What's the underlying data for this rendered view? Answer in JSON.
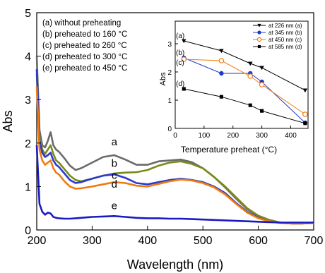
{
  "chart_data": [
    {
      "type": "line",
      "xlabel": "Wavelength (nm)",
      "ylabel": "Abs",
      "xlim": [
        200,
        700
      ],
      "ylim": [
        0,
        5
      ],
      "xticks": [
        200,
        300,
        400,
        500,
        600,
        700
      ],
      "yticks": [
        0,
        1,
        2,
        3,
        4,
        5
      ],
      "legend_position": "top-left",
      "legend": [
        "(a) without preheating",
        "(b) preheated to 160 °C",
        "(c) preheated to 260 °C",
        "(d) preheated to 300 °C",
        "(e) preheated to 450 °C"
      ],
      "x": [
        200,
        205,
        210,
        215,
        220,
        225,
        230,
        235,
        240,
        250,
        260,
        270,
        280,
        300,
        320,
        340,
        360,
        380,
        400,
        420,
        440,
        460,
        480,
        500,
        520,
        540,
        560,
        580,
        600,
        620,
        640,
        660,
        680,
        700
      ],
      "series": [
        {
          "name": "a",
          "color": "#6a6a6a",
          "values": [
            4.0,
            2.3,
            1.95,
            1.9,
            2.05,
            2.25,
            1.95,
            1.85,
            1.8,
            1.65,
            1.48,
            1.38,
            1.42,
            1.55,
            1.68,
            1.72,
            1.62,
            1.5,
            1.5,
            1.58,
            1.6,
            1.62,
            1.56,
            1.42,
            1.22,
            0.98,
            0.72,
            0.48,
            0.32,
            0.22,
            0.17,
            0.15,
            0.15,
            0.17
          ]
        },
        {
          "name": "b",
          "color": "#7a8a1a",
          "values": [
            3.6,
            2.15,
            1.85,
            1.75,
            1.85,
            1.95,
            1.75,
            1.6,
            1.55,
            1.4,
            1.25,
            1.15,
            1.12,
            1.18,
            1.25,
            1.3,
            1.32,
            1.33,
            1.38,
            1.48,
            1.55,
            1.58,
            1.52,
            1.42,
            1.22,
            1.0,
            0.75,
            0.5,
            0.33,
            0.23,
            0.17,
            0.15,
            0.15,
            0.17
          ]
        },
        {
          "name": "c",
          "color": "#2a3ad0",
          "values": [
            3.7,
            2.05,
            1.78,
            1.68,
            1.72,
            1.78,
            1.6,
            1.5,
            1.45,
            1.3,
            1.15,
            1.08,
            1.1,
            1.18,
            1.25,
            1.28,
            1.2,
            1.08,
            1.05,
            1.1,
            1.15,
            1.18,
            1.15,
            1.1,
            1.0,
            0.85,
            0.62,
            0.42,
            0.28,
            0.2,
            0.16,
            0.15,
            0.15,
            0.16
          ]
        },
        {
          "name": "d",
          "color": "#f07a10",
          "values": [
            3.3,
            1.85,
            1.6,
            1.5,
            1.55,
            1.6,
            1.42,
            1.32,
            1.28,
            1.12,
            1.0,
            0.95,
            0.96,
            1.0,
            1.05,
            1.1,
            1.08,
            1.02,
            1.0,
            1.06,
            1.12,
            1.16,
            1.14,
            1.08,
            0.98,
            0.82,
            0.6,
            0.4,
            0.27,
            0.2,
            0.16,
            0.15,
            0.15,
            0.16
          ]
        },
        {
          "name": "e",
          "color": "#1a1ac0",
          "values": [
            1.95,
            0.6,
            0.42,
            0.35,
            0.4,
            0.38,
            0.3,
            0.28,
            0.27,
            0.26,
            0.26,
            0.27,
            0.28,
            0.3,
            0.31,
            0.32,
            0.3,
            0.28,
            0.27,
            0.27,
            0.26,
            0.26,
            0.25,
            0.24,
            0.23,
            0.22,
            0.21,
            0.2,
            0.19,
            0.18,
            0.17,
            0.17,
            0.17,
            0.17
          ]
        }
      ],
      "curve_labels": [
        {
          "text": "a",
          "x": 340,
          "y": 1.95
        },
        {
          "text": "b",
          "x": 340,
          "y": 1.45
        },
        {
          "text": "c",
          "x": 340,
          "y": 1.18
        },
        {
          "text": "d",
          "x": 340,
          "y": 0.97
        },
        {
          "text": "e",
          "x": 340,
          "y": 0.48
        }
      ]
    },
    {
      "type": "line",
      "xlabel": "Temperature preheat (°C)",
      "ylabel": "Abs",
      "xlim": [
        0,
        460
      ],
      "ylim": [
        0,
        3.8
      ],
      "xticks": [
        0,
        100,
        200,
        300,
        400
      ],
      "yticks": [
        0,
        1,
        2,
        3
      ],
      "legend_position": "top-right",
      "x": [
        30,
        160,
        260,
        300,
        450
      ],
      "series": [
        {
          "name": "at 226 nm (a)",
          "marker": "triangle-down",
          "color": "#000000",
          "values": [
            3.1,
            2.75,
            2.3,
            2.15,
            1.35
          ]
        },
        {
          "name": "at 345 nm (b)",
          "marker": "circle",
          "color": "#1a3acc",
          "values": [
            2.5,
            1.95,
            1.95,
            1.65,
            0.2
          ]
        },
        {
          "name": "at 450 nm (c)",
          "marker": "hollow-circle",
          "color": "#f07a10",
          "values": [
            2.45,
            2.4,
            1.85,
            1.55,
            0.5
          ]
        },
        {
          "name": "at 585 nm (d)",
          "marker": "square",
          "color": "#000000",
          "values": [
            1.4,
            1.12,
            0.82,
            0.62,
            0.18
          ]
        }
      ],
      "point_labels": [
        {
          "text": "(a)",
          "series": 0
        },
        {
          "text": "(b)",
          "series": 1
        },
        {
          "text": "(c)",
          "series": 2
        },
        {
          "text": "(d)",
          "series": 3
        }
      ]
    }
  ]
}
